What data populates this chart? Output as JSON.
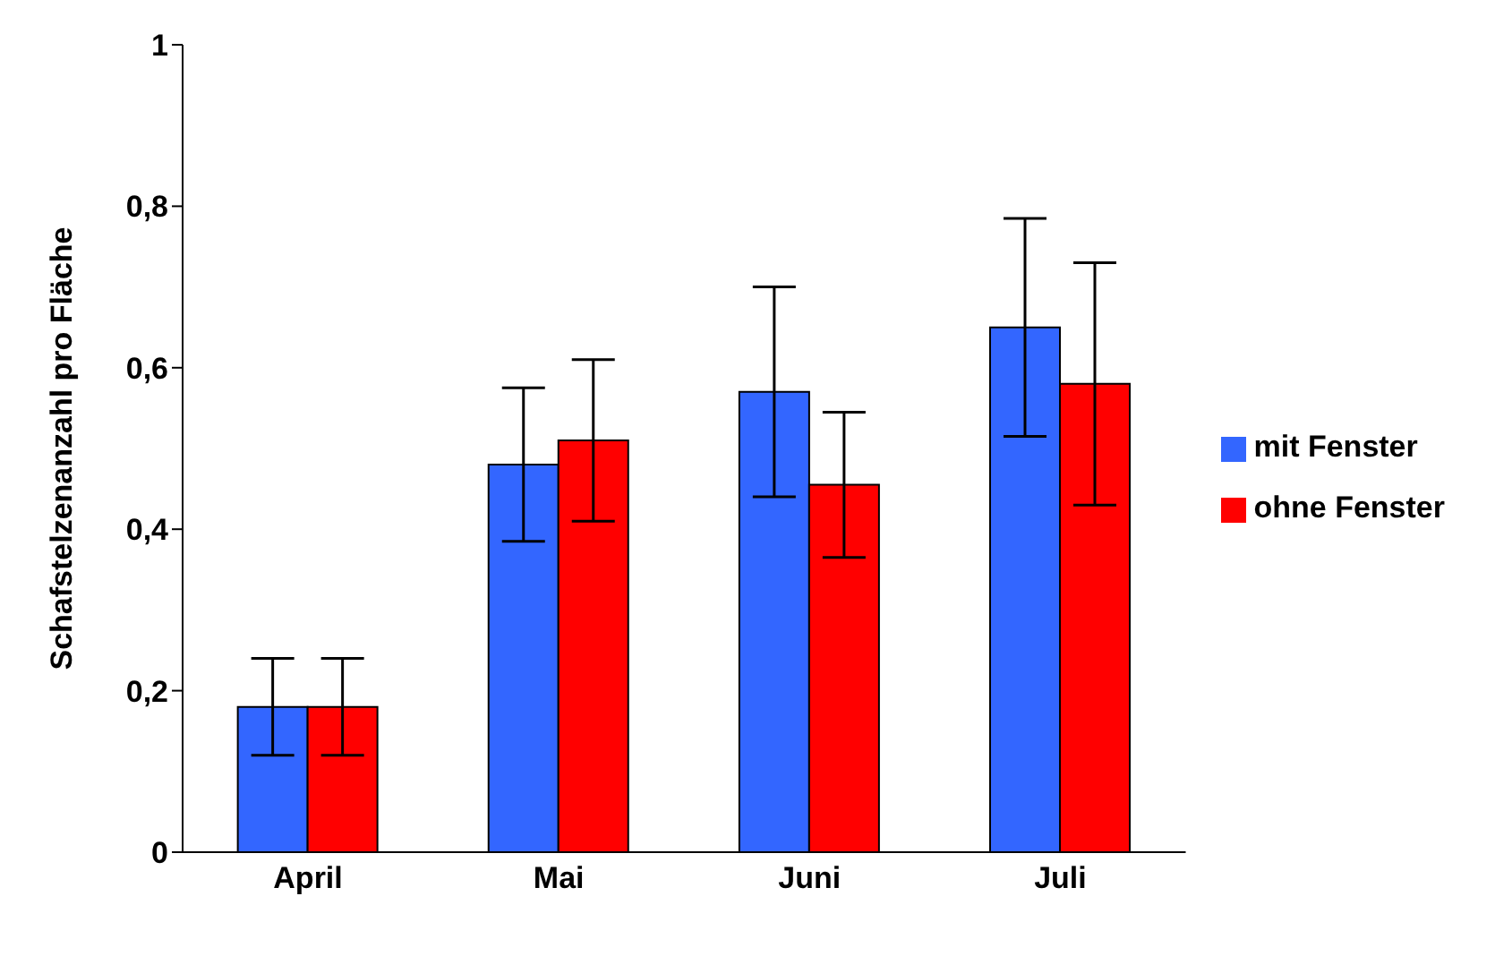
{
  "chart_data": {
    "type": "bar",
    "ylabel": "Schafstelzenanzahl pro Fläche",
    "categories": [
      "April",
      "Mai",
      "Juni",
      "Juli"
    ],
    "series": [
      {
        "name": "mit Fenster",
        "color": "#3366ff",
        "values": [
          0.18,
          0.48,
          0.57,
          0.65
        ],
        "errors": [
          0.06,
          0.095,
          0.13,
          0.135
        ]
      },
      {
        "name": "ohne Fenster",
        "color": "#ff0000",
        "values": [
          0.18,
          0.51,
          0.455,
          0.58
        ],
        "errors": [
          0.06,
          0.1,
          0.09,
          0.15
        ]
      }
    ],
    "ylim": [
      0,
      1
    ],
    "yticks": [
      0,
      {
        "value": 0.2,
        "label": "0,2"
      },
      {
        "value": 0.4,
        "label": "0,4"
      },
      {
        "value": 0.6,
        "label": "0,6"
      },
      {
        "value": 0.8,
        "label": "0,8"
      },
      1
    ],
    "grid": false,
    "legend": "right"
  }
}
